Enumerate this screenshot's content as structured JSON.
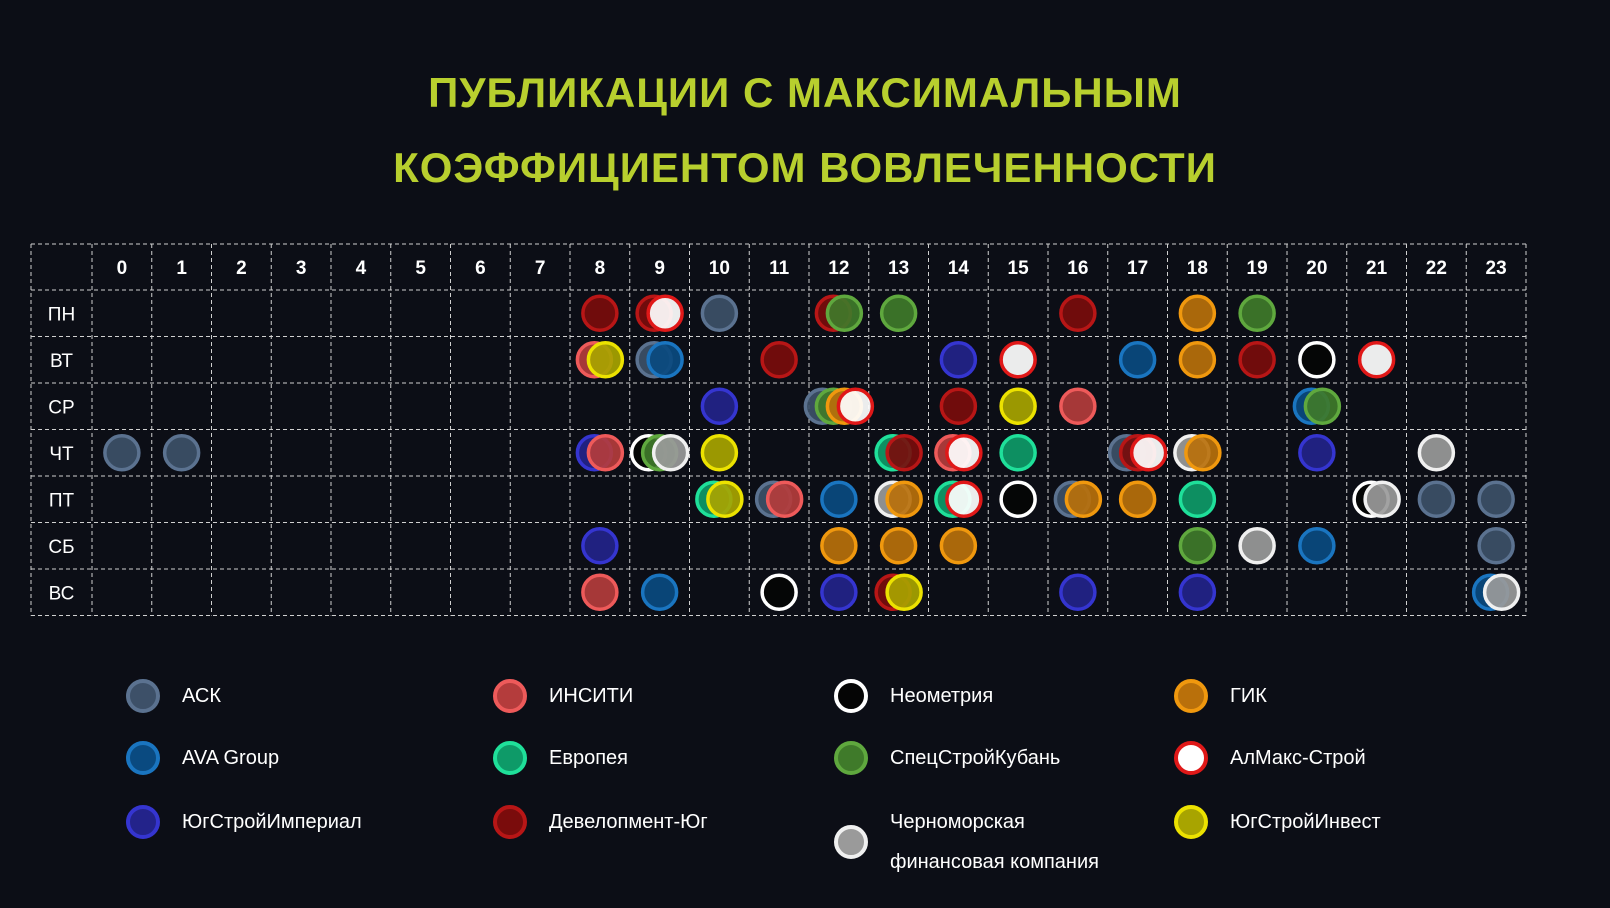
{
  "title": {
    "line1": "ПУБЛИКАЦИИ С МАКСИМАЛЬНЫМ",
    "line2": "КОЭФФИЦИЕНТОМ ВОВЛЕЧЕННОСТИ",
    "color": "#b8cf2e"
  },
  "chart_data": {
    "type": "scatter",
    "title": "ПУБЛИКАЦИИ С МАКСИМАЛЬНЫМ КОЭФФИЦИЕНТОМ ВОВЛЕЧЕННОСТИ",
    "x_categories": [
      "0",
      "1",
      "2",
      "3",
      "4",
      "5",
      "6",
      "7",
      "8",
      "9",
      "10",
      "11",
      "12",
      "13",
      "14",
      "15",
      "16",
      "17",
      "18",
      "19",
      "20",
      "21",
      "22",
      "23"
    ],
    "y_categories": [
      "ПН",
      "ВТ",
      "СР",
      "ЧТ",
      "ПТ",
      "СБ",
      "ВС"
    ],
    "grid": true,
    "legend_position": "bottom",
    "series": [
      {
        "name": "АСК",
        "fill": "#3d5068",
        "stroke": "#5b7290",
        "points": [
          [
            "ПН",
            "10"
          ],
          [
            "ВТ",
            "9"
          ],
          [
            "СР",
            "12"
          ],
          [
            "ЧТ",
            "0"
          ],
          [
            "ЧТ",
            "1"
          ],
          [
            "ЧТ",
            "17"
          ],
          [
            "ПТ",
            "11"
          ],
          [
            "ПТ",
            "16"
          ],
          [
            "ПТ",
            "22"
          ],
          [
            "ПТ",
            "23"
          ],
          [
            "СБ",
            "23"
          ]
        ]
      },
      {
        "name": "AVA Group",
        "fill": "#0a4a80",
        "stroke": "#1a75c0",
        "points": [
          [
            "ВТ",
            "9"
          ],
          [
            "ВТ",
            "17"
          ],
          [
            "СР",
            "20"
          ],
          [
            "ПТ",
            "12"
          ],
          [
            "СБ",
            "20"
          ],
          [
            "ВС",
            "9"
          ],
          [
            "ВС",
            "23"
          ]
        ]
      },
      {
        "name": "ЮгСтройИмпериал",
        "fill": "#23238a",
        "stroke": "#3535d0",
        "points": [
          [
            "ВТ",
            "14"
          ],
          [
            "СР",
            "10"
          ],
          [
            "ЧТ",
            "8"
          ],
          [
            "ЧТ",
            "20"
          ],
          [
            "СБ",
            "8"
          ],
          [
            "ВС",
            "12"
          ],
          [
            "ВС",
            "16"
          ],
          [
            "ВС",
            "18"
          ]
        ]
      },
      {
        "name": "ИНСИТИ",
        "fill": "#b43c3c",
        "stroke": "#ee5a5a",
        "points": [
          [
            "ВТ",
            "8"
          ],
          [
            "СР",
            "16"
          ],
          [
            "ЧТ",
            "8"
          ],
          [
            "ЧТ",
            "14"
          ],
          [
            "ПТ",
            "11"
          ],
          [
            "ВС",
            "8"
          ]
        ]
      },
      {
        "name": "Европея",
        "fill": "#0e9a68",
        "stroke": "#1fe09a",
        "points": [
          [
            "ЧТ",
            "13"
          ],
          [
            "ЧТ",
            "15"
          ],
          [
            "ПТ",
            "10"
          ],
          [
            "ПТ",
            "14"
          ],
          [
            "ПТ",
            "18"
          ]
        ]
      },
      {
        "name": "Девелопмент-Юг",
        "fill": "#7a0c0c",
        "stroke": "#b81616",
        "points": [
          [
            "ПН",
            "8"
          ],
          [
            "ПН",
            "9"
          ],
          [
            "ПН",
            "12"
          ],
          [
            "ПН",
            "16"
          ],
          [
            "ВТ",
            "11"
          ],
          [
            "ВТ",
            "19"
          ],
          [
            "СР",
            "14"
          ],
          [
            "ЧТ",
            "13"
          ],
          [
            "ЧТ",
            "17"
          ],
          [
            "ВС",
            "13"
          ]
        ]
      },
      {
        "name": "Неометрия",
        "fill": "#050505",
        "stroke": "#ffffff",
        "points": [
          [
            "ВТ",
            "20"
          ],
          [
            "ЧТ",
            "9"
          ],
          [
            "ПТ",
            "15"
          ],
          [
            "ПТ",
            "21"
          ],
          [
            "ВС",
            "11"
          ]
        ]
      },
      {
        "name": "СпецСтройКубань",
        "fill": "#3f7a2a",
        "stroke": "#5fa83e",
        "points": [
          [
            "ПН",
            "12"
          ],
          [
            "ПН",
            "13"
          ],
          [
            "ПН",
            "19"
          ],
          [
            "СР",
            "12"
          ],
          [
            "СР",
            "20"
          ],
          [
            "ЧТ",
            "9"
          ],
          [
            "СБ",
            "18"
          ]
        ]
      },
      {
        "name": "Черноморская финансовая компания",
        "fill": "#9a9a9a",
        "stroke": "#f0f0f0",
        "points": [
          [
            "ЧТ",
            "9"
          ],
          [
            "ЧТ",
            "18"
          ],
          [
            "ЧТ",
            "22"
          ],
          [
            "ПТ",
            "13"
          ],
          [
            "ПТ",
            "21"
          ],
          [
            "СБ",
            "19"
          ],
          [
            "ВС",
            "23"
          ]
        ]
      },
      {
        "name": "ГИК",
        "fill": "#b9700b",
        "stroke": "#f0980e",
        "points": [
          [
            "ПН",
            "18"
          ],
          [
            "ВТ",
            "18"
          ],
          [
            "СР",
            "12"
          ],
          [
            "ЧТ",
            "18"
          ],
          [
            "ПТ",
            "13"
          ],
          [
            "ПТ",
            "16"
          ],
          [
            "ПТ",
            "17"
          ],
          [
            "СБ",
            "12"
          ],
          [
            "СБ",
            "13"
          ],
          [
            "СБ",
            "14"
          ]
        ]
      },
      {
        "name": "АлМакс-Строй",
        "fill": "#ffffff",
        "stroke": "#e01818",
        "points": [
          [
            "ПН",
            "9"
          ],
          [
            "ВТ",
            "15"
          ],
          [
            "ВТ",
            "21"
          ],
          [
            "СР",
            "12"
          ],
          [
            "ЧТ",
            "14"
          ],
          [
            "ЧТ",
            "17"
          ],
          [
            "ПТ",
            "14"
          ]
        ]
      },
      {
        "name": "ЮгСтройИнвест",
        "fill": "#a8a400",
        "stroke": "#ece200",
        "points": [
          [
            "ВТ",
            "8"
          ],
          [
            "СР",
            "15"
          ],
          [
            "ЧТ",
            "10"
          ],
          [
            "ПТ",
            "10"
          ],
          [
            "ВС",
            "13"
          ]
        ]
      }
    ]
  },
  "legend": [
    {
      "label": "АСК",
      "fill": "#3d5068",
      "stroke": "#5b7290"
    },
    {
      "label": "AVA Group",
      "fill": "#0a4a80",
      "stroke": "#1a75c0"
    },
    {
      "label": "ЮгСтройИмпериал",
      "fill": "#23238a",
      "stroke": "#3535d0"
    },
    {
      "label": "ИНСИТИ",
      "fill": "#b43c3c",
      "stroke": "#ee5a5a"
    },
    {
      "label": "Европея",
      "fill": "#0e9a68",
      "stroke": "#1fe09a"
    },
    {
      "label": "Девелопмент-Юг",
      "fill": "#7a0c0c",
      "stroke": "#b81616"
    },
    {
      "label": "Неометрия",
      "fill": "#050505",
      "stroke": "#ffffff"
    },
    {
      "label": "СпецСтройКубань",
      "fill": "#3f7a2a",
      "stroke": "#5fa83e"
    },
    {
      "label": "Черноморская финансовая компания",
      "fill": "#9a9a9a",
      "stroke": "#f0f0f0"
    },
    {
      "label": "ГИК",
      "fill": "#b9700b",
      "stroke": "#f0980e"
    },
    {
      "label": "АлМакс-Строй",
      "fill": "#ffffff",
      "stroke": "#e01818"
    },
    {
      "label": "ЮгСтройИнвест",
      "fill": "#a8a400",
      "stroke": "#ece200"
    }
  ]
}
